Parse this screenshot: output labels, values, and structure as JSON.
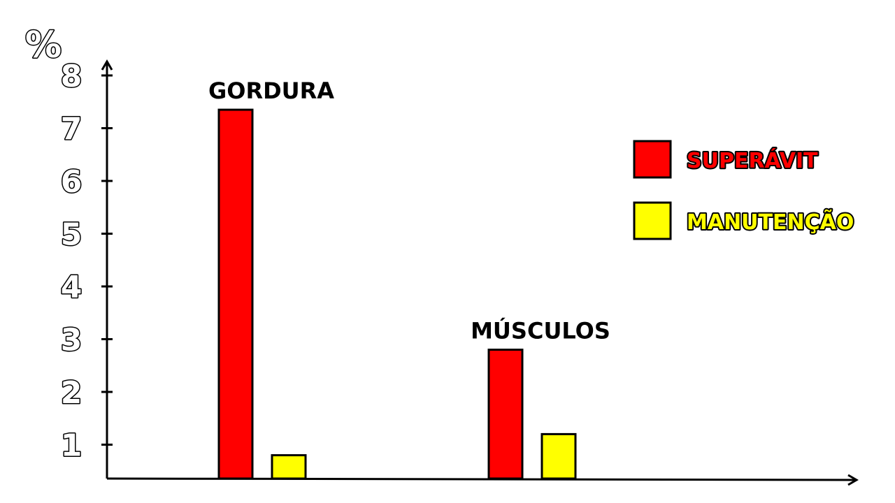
{
  "chart_data": {
    "type": "bar",
    "ylabel": "%",
    "ylim": [
      0,
      8
    ],
    "yticks": [
      "1",
      "2",
      "3",
      "4",
      "5",
      "6",
      "7",
      "8"
    ],
    "categories": [
      "GORDURA",
      "MÚSCULOS"
    ],
    "series": [
      {
        "name": "SUPERÁVIT",
        "color": "#ff0000",
        "values": [
          7.35,
          2.8
        ]
      },
      {
        "name": "MANUTENÇÃO",
        "color": "#ffff00",
        "values": [
          0.8,
          1.2
        ]
      }
    ],
    "legend": "right",
    "grid": false
  }
}
